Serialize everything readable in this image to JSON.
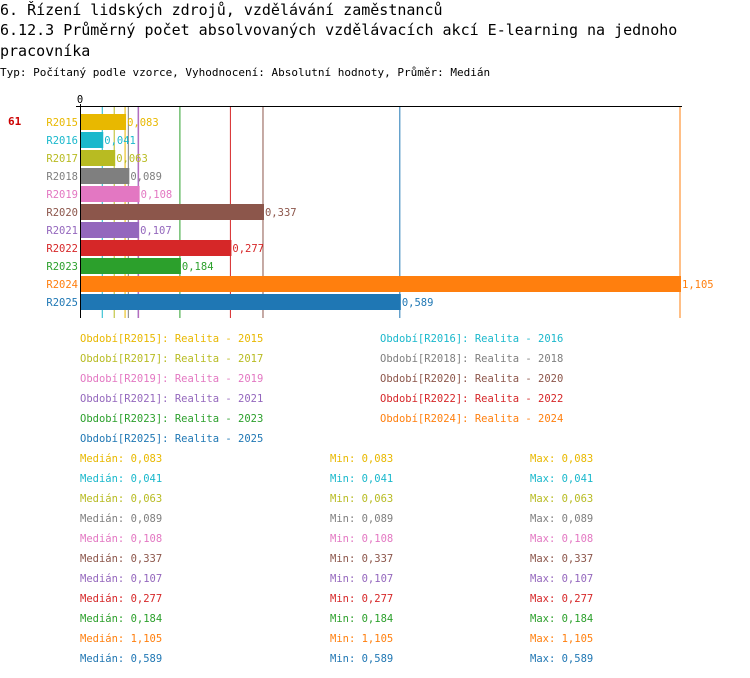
{
  "header": {
    "section": "6. Řízení lidských zdrojů, vzdělávání zaměstnanců",
    "indicator": "6.12.3 Průměrný počet absolvovaných vzdělávacích akcí E-learning na jednoho pracovníka",
    "meta": "Typ: Počítaný podle vzorce, Vyhodnocení: Absolutní hodnoty, Průměr: Medián",
    "badge": "61"
  },
  "chart_data": {
    "type": "bar",
    "orientation": "horizontal",
    "title": "6.12.3 Průměrný počet absolvovaných vzdělávacích akcí E-learning na jednoho pracovníka",
    "xlim": [
      0,
      1.105
    ],
    "axis_zero_label": "0",
    "categories": [
      "R2015",
      "R2016",
      "R2017",
      "R2018",
      "R2019",
      "R2020",
      "R2021",
      "R2022",
      "R2023",
      "R2024",
      "R2025"
    ],
    "values": [
      0.083,
      0.041,
      0.063,
      0.089,
      0.108,
      0.337,
      0.107,
      0.277,
      0.184,
      1.105,
      0.589
    ],
    "value_labels": [
      "0,083",
      "0,041",
      "0,063",
      "0,089",
      "0,108",
      "0,337",
      "0,107",
      "0,277",
      "0,184",
      "1,105",
      "0,589"
    ],
    "colors": [
      "#e8b800",
      "#1ab8cc",
      "#b8bb22",
      "#7f7f7f",
      "#e377c2",
      "#8c564b",
      "#9467bd",
      "#d62728",
      "#2ca02c",
      "#ff7f0e",
      "#1f77b4"
    ]
  },
  "legend": [
    "Období[R2015]: Realita - 2015",
    "Období[R2016]: Realita - 2016",
    "Období[R2017]: Realita - 2017",
    "Období[R2018]: Realita - 2018",
    "Období[R2019]: Realita - 2019",
    "Období[R2020]: Realita - 2020",
    "Období[R2021]: Realita - 2021",
    "Období[R2022]: Realita - 2022",
    "Období[R2023]: Realita - 2023",
    "Období[R2024]: Realita - 2024",
    "Období[R2025]: Realita - 2025"
  ],
  "stats": [
    {
      "median": "Medián: 0,083",
      "min": "Min: 0,083",
      "max": "Max: 0,083"
    },
    {
      "median": "Medián: 0,041",
      "min": "Min: 0,041",
      "max": "Max: 0,041"
    },
    {
      "median": "Medián: 0,063",
      "min": "Min: 0,063",
      "max": "Max: 0,063"
    },
    {
      "median": "Medián: 0,089",
      "min": "Min: 0,089",
      "max": "Max: 0,089"
    },
    {
      "median": "Medián: 0,108",
      "min": "Min: 0,108",
      "max": "Max: 0,108"
    },
    {
      "median": "Medián: 0,337",
      "min": "Min: 0,337",
      "max": "Max: 0,337"
    },
    {
      "median": "Medián: 0,107",
      "min": "Min: 0,107",
      "max": "Max: 0,107"
    },
    {
      "median": "Medián: 0,277",
      "min": "Min: 0,277",
      "max": "Max: 0,277"
    },
    {
      "median": "Medián: 0,184",
      "min": "Min: 0,184",
      "max": "Max: 0,184"
    },
    {
      "median": "Medián: 1,105",
      "min": "Min: 1,105",
      "max": "Max: 1,105"
    },
    {
      "median": "Medián: 0,589",
      "min": "Min: 0,589",
      "max": "Max: 0,589"
    }
  ]
}
